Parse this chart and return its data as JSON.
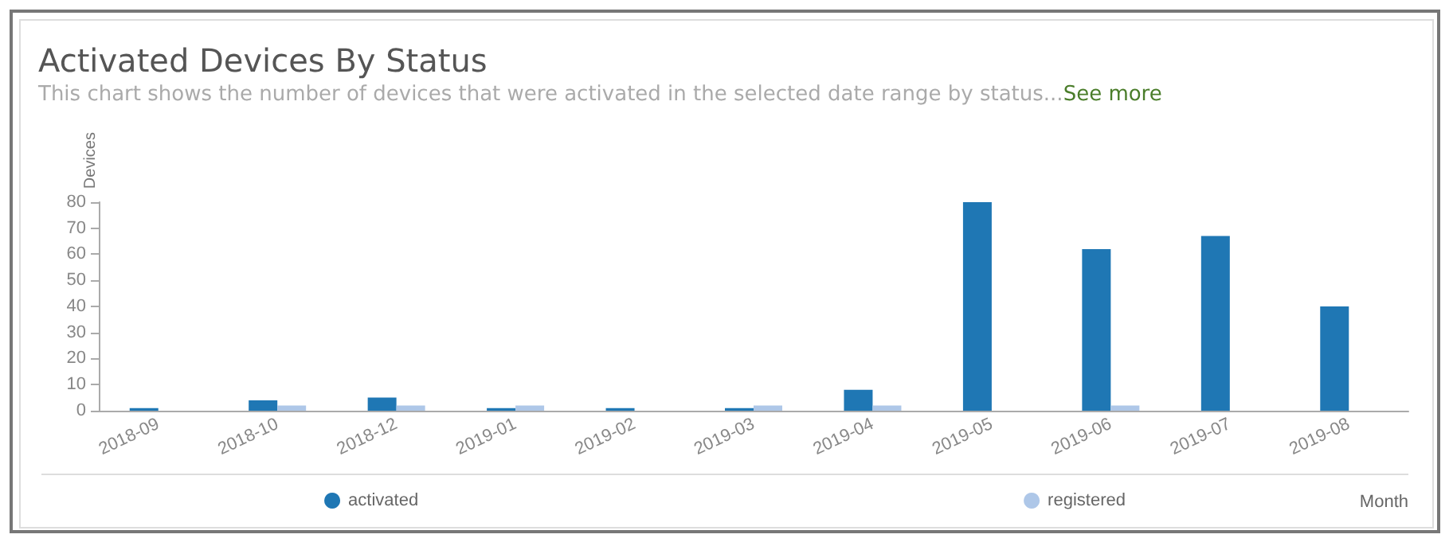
{
  "chart_data": {
    "type": "bar",
    "title": "Activated Devices By Status",
    "subtitle": "This chart shows the number of devices that were activated in the selected date range by status...",
    "annotations": [
      "See more"
    ],
    "xlabel": "Month",
    "ylabel": "Devices",
    "categories": [
      "2018-09",
      "2018-10",
      "2018-12",
      "2019-01",
      "2019-02",
      "2019-03",
      "2019-04",
      "2019-05",
      "2019-06",
      "2019-07",
      "2019-08"
    ],
    "series": [
      {
        "name": "activated",
        "color": "#1f77b4",
        "values": [
          1,
          4,
          5,
          1,
          1,
          1,
          8,
          80,
          62,
          67,
          40
        ]
      },
      {
        "name": "registered",
        "color": "#aec7e8",
        "values": [
          null,
          2,
          2,
          2,
          null,
          2,
          2,
          null,
          2,
          null,
          null
        ]
      }
    ],
    "ylim": [
      0,
      80
    ],
    "yticks": [
      0,
      10,
      20,
      30,
      40,
      50,
      60,
      70,
      80
    ],
    "grid": false,
    "legend": "bottom"
  }
}
